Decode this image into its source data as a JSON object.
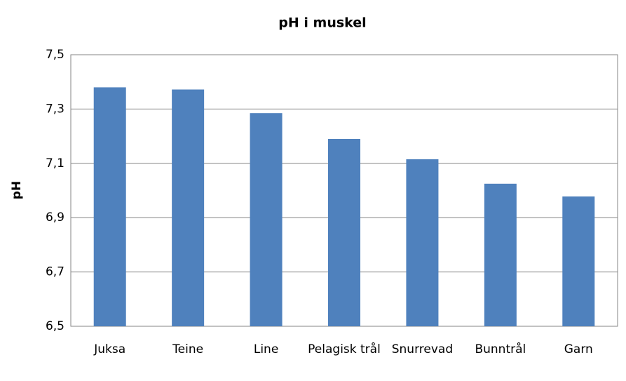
{
  "chart_data": {
    "type": "bar",
    "title": "pH i muskel",
    "y_label": "pH",
    "categories": [
      "Juksa",
      "Teine",
      "Line",
      "Pelagisk trål",
      "Snurrevad",
      "Bunntrål",
      "Garn"
    ],
    "values": [
      7.38,
      7.372,
      7.285,
      7.19,
      7.115,
      7.025,
      6.978
    ],
    "color": "#4f81bd",
    "ylim": [
      6.5,
      7.5
    ],
    "yticks": [
      {
        "value": 6.5,
        "label": "6,5"
      },
      {
        "value": 6.7,
        "label": "6,7"
      },
      {
        "value": 6.9,
        "label": "6,9"
      },
      {
        "value": 7.1,
        "label": "7,1"
      },
      {
        "value": 7.3,
        "label": "7,3"
      },
      {
        "value": 7.5,
        "label": "7,5"
      }
    ],
    "grid": true
  }
}
